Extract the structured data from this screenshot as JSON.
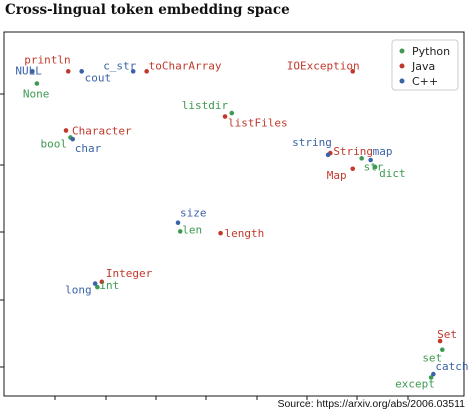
{
  "title": "Cross-lingual token embedding space",
  "source": "Source: https://arxiv.org/abs/2006.03511",
  "colors": {
    "Python": "#3e9a52",
    "Java": "#c0392b",
    "C++": "#3a63a8"
  },
  "chart_data": {
    "type": "scatter",
    "title": "Cross-lingual token embedding space",
    "xlabel": "",
    "ylabel": "",
    "xlim": [
      0,
      100
    ],
    "ylim": [
      0,
      100
    ],
    "grid": false,
    "legend": "top-right",
    "series": [
      {
        "name": "Python",
        "points": [
          {
            "x": 6,
            "y": 87.5,
            "label": "None"
          },
          {
            "x": 13.5,
            "y": 72,
            "label": "bool"
          },
          {
            "x": 49.5,
            "y": 79,
            "label": "listdir"
          },
          {
            "x": 78.5,
            "y": 66,
            "label": "str"
          },
          {
            "x": 81.5,
            "y": 63.5,
            "label": "dict"
          },
          {
            "x": 38,
            "y": 45,
            "label": "len"
          },
          {
            "x": 19.5,
            "y": 29,
            "label": "int"
          },
          {
            "x": 96.5,
            "y": 11,
            "label": "set"
          },
          {
            "x": 94,
            "y": 3,
            "label": "except"
          }
        ]
      },
      {
        "name": "Java",
        "points": [
          {
            "x": 13,
            "y": 91,
            "label": "println"
          },
          {
            "x": 30.5,
            "y": 91,
            "label": "toCharArray"
          },
          {
            "x": 76.5,
            "y": 91,
            "label": "IOException"
          },
          {
            "x": 48,
            "y": 78,
            "label": "listFiles"
          },
          {
            "x": 12.5,
            "y": 74,
            "label": "Character"
          },
          {
            "x": 71.5,
            "y": 67.5,
            "label": "String"
          },
          {
            "x": 76.5,
            "y": 63,
            "label": "Map"
          },
          {
            "x": 47,
            "y": 44.5,
            "label": "length"
          },
          {
            "x": 20.5,
            "y": 30.5,
            "label": "Integer"
          },
          {
            "x": 96,
            "y": 13.5,
            "label": "Set"
          }
        ]
      },
      {
        "name": "C++",
        "points": [
          {
            "x": 5,
            "y": 91,
            "label": "NULL"
          },
          {
            "x": 16,
            "y": 91,
            "label": "cout"
          },
          {
            "x": 27.5,
            "y": 91,
            "label": "c_str"
          },
          {
            "x": 14,
            "y": 71.5,
            "label": "char"
          },
          {
            "x": 71,
            "y": 67,
            "label": "string"
          },
          {
            "x": 80.5,
            "y": 65.5,
            "label": "map"
          },
          {
            "x": 37.5,
            "y": 47.5,
            "label": "size"
          },
          {
            "x": 19,
            "y": 30,
            "label": "long"
          },
          {
            "x": 94.5,
            "y": 4,
            "label": "catch"
          }
        ]
      }
    ]
  }
}
